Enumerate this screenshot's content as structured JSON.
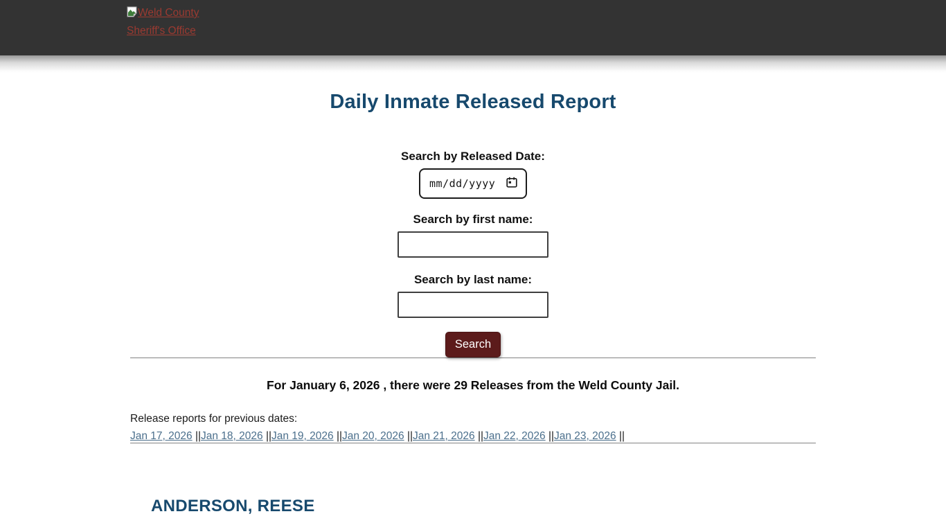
{
  "header": {
    "logo_alt": "Weld County Sheriff's Office"
  },
  "page": {
    "title": "Daily Inmate Released Report"
  },
  "form": {
    "date_label": "Search by Released Date:",
    "date_placeholder": "mm/dd/yyyy",
    "first_name_label": "Search by first name:",
    "first_name_value": "",
    "last_name_label": "Search by last name:",
    "last_name_value": "",
    "search_button_label": "Search"
  },
  "results": {
    "summary": "For January 6, 2026 , there were 29 Releases from the Weld County Jail.",
    "previous_dates_label": "Release reports for previous dates:",
    "previous_dates": [
      "Jan 17, 2026",
      "Jan 18, 2026",
      "Jan 19, 2026",
      "Jan 20, 2026",
      "Jan 21, 2026",
      "Jan 22, 2026",
      "Jan 23, 2026"
    ],
    "separator": "||",
    "first_inmate_name": "ANDERSON, REESE"
  },
  "colors": {
    "header_bg": "#333333",
    "header_link_red": "#9b3a31",
    "title_blue": "#17496d",
    "date_link_blue": "#4b6f8c",
    "button_maroon": "#5c1b1b"
  }
}
